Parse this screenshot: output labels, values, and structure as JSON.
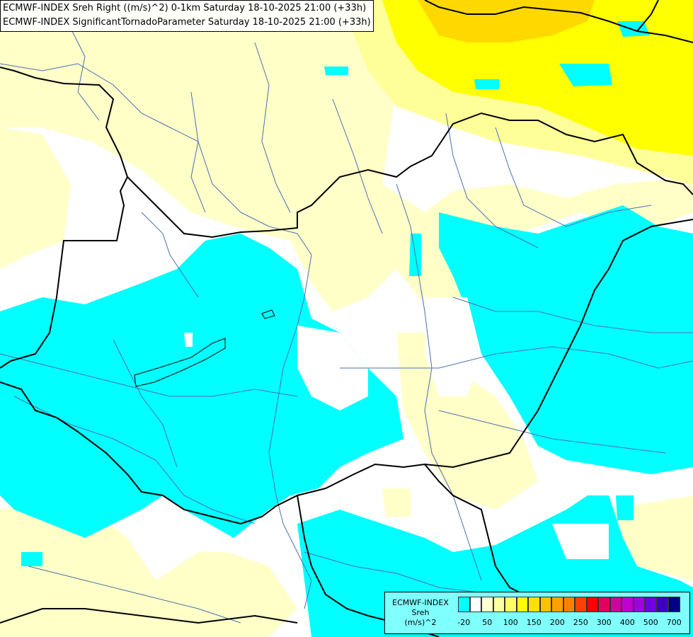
{
  "header": {
    "line1": "ECMWF-INDEX Sreh Right ((m/s)^2) 0-1km Saturday 18-10-2025 21:00 (+33h)",
    "line2": "ECMWF-INDEX SignificantTornadoParameter Saturday 18-10-2025 21:00 (+33h)"
  },
  "legend": {
    "title_line1": "ECMWF-INDEX",
    "title_line2": "Sreh",
    "title_line3": "(m/s)^2",
    "colors": [
      "#00ffff",
      "#ffffff",
      "#ffffd0",
      "#ffffa0",
      "#ffff60",
      "#ffff00",
      "#ffe000",
      "#ffc000",
      "#ffa000",
      "#ff8000",
      "#ff4000",
      "#ff0000",
      "#e00060",
      "#d000a0",
      "#c000d0",
      "#a000e0",
      "#7000e0",
      "#4000c0",
      "#000080"
    ],
    "tick_labels": [
      "-20",
      "50",
      "100",
      "150",
      "200",
      "250",
      "300",
      "400",
      "500",
      "700"
    ]
  },
  "colors": {
    "cyan": "#00ffff",
    "white": "#ffffff",
    "pale_yellow": "#ffffc8",
    "light_yellow": "#ffff99",
    "yellow": "#ffff00",
    "gold": "#ffd800",
    "border": "#000000",
    "river": "#4a6fb0"
  }
}
